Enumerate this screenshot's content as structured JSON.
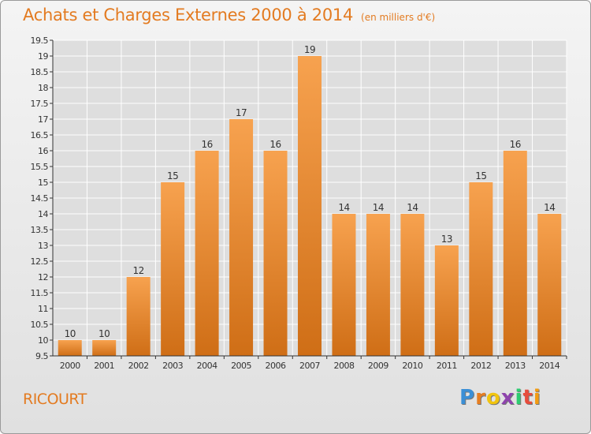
{
  "chart_data": {
    "type": "bar",
    "title": "Achats et Charges Externes 2000 à 2014",
    "subtitle": "(en milliers d'€)",
    "categories": [
      "2000",
      "2001",
      "2002",
      "2003",
      "2004",
      "2005",
      "2006",
      "2007",
      "2008",
      "2009",
      "2010",
      "2011",
      "2012",
      "2013",
      "2014"
    ],
    "values": [
      10,
      10,
      12,
      15,
      16,
      17,
      16,
      19,
      14,
      14,
      14,
      13,
      15,
      16,
      14
    ],
    "data_labels": [
      "10",
      "10",
      "12",
      "15",
      "16",
      "17",
      "16",
      "19",
      "14",
      "14",
      "14",
      "13",
      "15",
      "16",
      "14"
    ],
    "ylim": [
      9.5,
      19.5
    ],
    "yticks": [
      9.5,
      10,
      10.5,
      11,
      11.5,
      12,
      12.5,
      13,
      13.5,
      14,
      14.5,
      15,
      15.5,
      16,
      16.5,
      17,
      17.5,
      18,
      18.5,
      19,
      19.5
    ],
    "ytick_labels": [
      "9.5",
      "10",
      "10.5",
      "11",
      "11.5",
      "12",
      "12.5",
      "13",
      "13.5",
      "14",
      "14.5",
      "15",
      "15.5",
      "16",
      "16.5",
      "17",
      "17.5",
      "18",
      "18.5",
      "19",
      "19.5"
    ],
    "grid": true,
    "xlabel": "",
    "ylabel": "",
    "bar_color_top": "#f7a24f",
    "bar_color_bottom": "#cf6e16"
  },
  "footer": {
    "commune": "RICOURT",
    "logo_letters": [
      "P",
      "r",
      "o",
      "x",
      "i",
      "t",
      "i"
    ],
    "logo_colors": [
      "#3b8fd6",
      "#e67e22",
      "#f1c40f",
      "#8e44ad",
      "#2ecc71",
      "#e74c3c",
      "#f39c12"
    ]
  },
  "colors": {
    "accent": "#e37b21",
    "grid": "#ffffff",
    "axis": "#333333"
  }
}
